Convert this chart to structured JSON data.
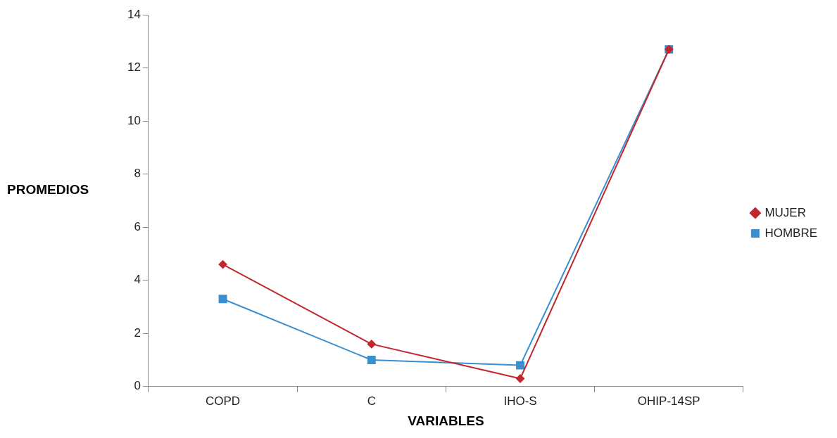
{
  "chart_data": {
    "type": "line",
    "xlabel": "VARIABLES",
    "ylabel": "PROMEDIOS",
    "categories": [
      "COPD",
      "C",
      "IHO-S",
      "OHIP-14SP"
    ],
    "series": [
      {
        "name": "MUJER",
        "color": "#c0282e",
        "marker": "diamond",
        "values": [
          4.6,
          1.6,
          0.3,
          12.7
        ]
      },
      {
        "name": "HOMBRE",
        "color": "#3a8fd0",
        "marker": "square",
        "values": [
          3.3,
          1.0,
          0.8,
          12.7
        ]
      }
    ],
    "ylim": [
      0,
      14
    ],
    "yticks": [
      0,
      2,
      4,
      6,
      8,
      10,
      12,
      14
    ],
    "legend": "right",
    "line_style": "solid"
  }
}
